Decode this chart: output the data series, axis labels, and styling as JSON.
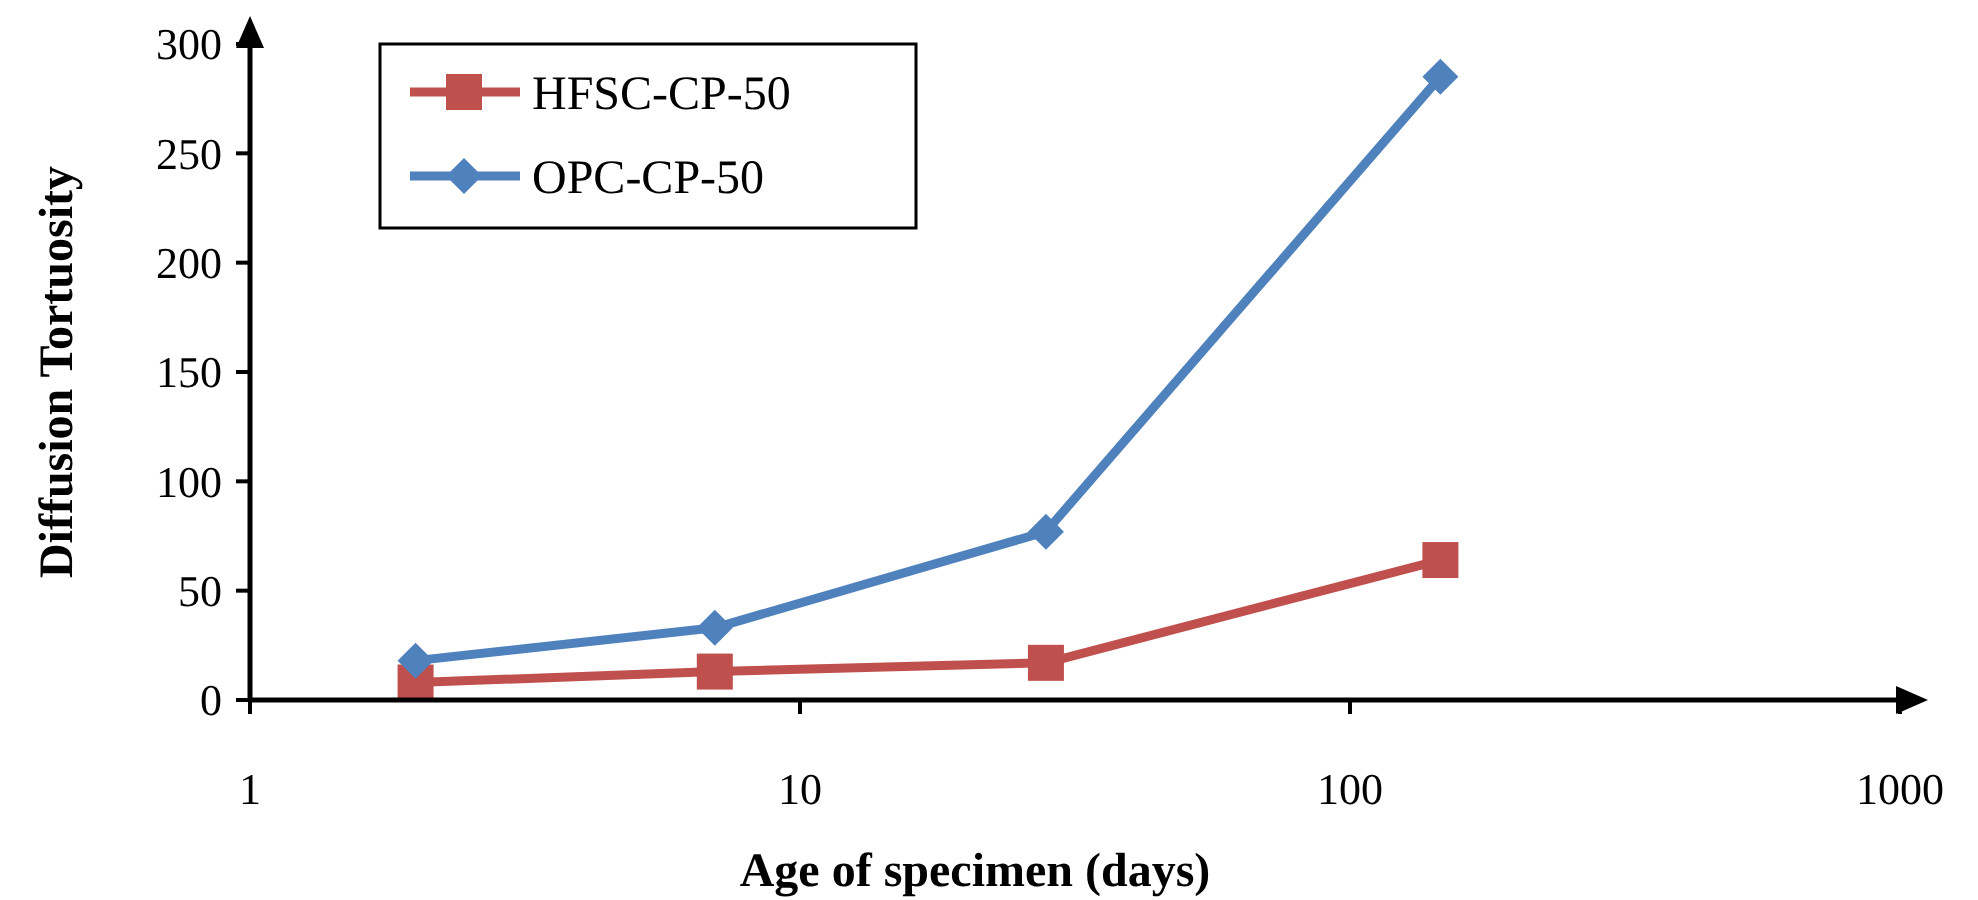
{
  "chart_data": {
    "type": "line",
    "xlabel": "Age of specimen (days)",
    "ylabel": "Diffusion Tortuosity",
    "log": "x",
    "xlim": [
      1,
      1000
    ],
    "xticks": [
      1,
      10,
      100,
      1000
    ],
    "ylim": [
      0,
      300
    ],
    "yticks": [
      0,
      50,
      100,
      150,
      200,
      250,
      300
    ],
    "grid": false,
    "legend": "top left",
    "line_style": "solid",
    "series": [
      {
        "name": "HFSC-CP-50",
        "color": "#c0504d",
        "marker": "square",
        "x": [
          2,
          7,
          28,
          146
        ],
        "values": [
          8,
          13,
          17,
          64
        ]
      },
      {
        "name": "OPC-CP-50",
        "color": "#4f81bd",
        "marker": "diamond",
        "x": [
          2,
          7,
          28,
          146
        ],
        "values": [
          18,
          33,
          77,
          285
        ]
      }
    ]
  }
}
